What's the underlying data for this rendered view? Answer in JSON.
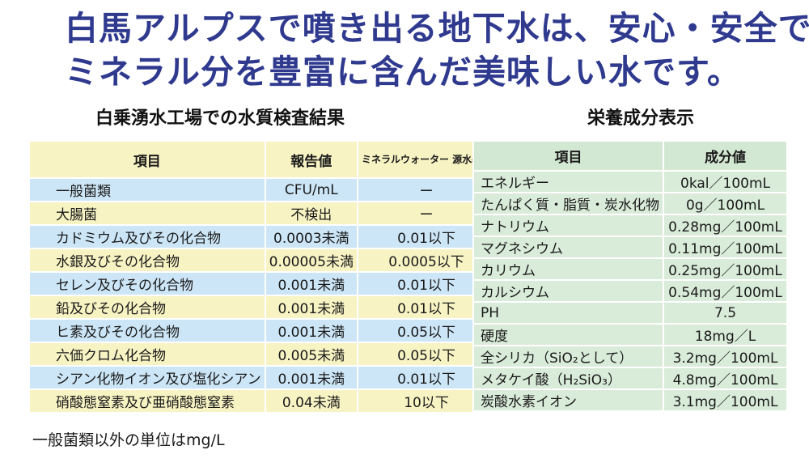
{
  "headline": {
    "line1": "白馬アルプスで噴き出る地下水は、安心・安全で",
    "line2": "ミネラル分を豊富に含んだ美味しい水です。"
  },
  "water_quality": {
    "title": "白乗湧水工場での水質検査結果",
    "headers": [
      "項目",
      "報告値",
      "ミネラルウォーター 源水基準"
    ],
    "rows": [
      [
        "一般菌類",
        "CFU/mL",
        "ー"
      ],
      [
        "大腸菌",
        "不検出",
        "ー"
      ],
      [
        "カドミウム及びその化合物",
        "0.0003未満",
        "0.01以下"
      ],
      [
        "水銀及びその化合物",
        "0.00005未満",
        "0.0005以下"
      ],
      [
        "セレン及びその化合物",
        "0.001未満",
        "0.01以下"
      ],
      [
        "鉛及びその化合物",
        "0.001未満",
        "0.01以下"
      ],
      [
        "ヒ素及びその化合物",
        "0.001未満",
        "0.05以下"
      ],
      [
        "六価クロム化合物",
        "0.005未満",
        "0.05以下"
      ],
      [
        "シアン化物イオン及び塩化シアン",
        "0.001未満",
        "0.01以下"
      ],
      [
        "硝酸態窒素及び亜硝酸態窒素",
        "0.04未満",
        "10以下"
      ]
    ],
    "footnote": "一般菌類以外の単位はmg/L"
  },
  "nutrition": {
    "title": "栄養成分表示",
    "headers": [
      "項目",
      "成分値"
    ],
    "rows": [
      [
        "エネルギー",
        "0kal／100mL"
      ],
      [
        "たんぱく質・脂質・炭水化物",
        "0g／100mL"
      ],
      [
        "ナトリウム",
        "0.28mg／100mL"
      ],
      [
        "マグネシウム",
        "0.11mg／100mL"
      ],
      [
        "カリウム",
        "0.25mg／100mL"
      ],
      [
        "カルシウム",
        "0.54mg／100mL"
      ],
      [
        "PH",
        "7.5"
      ],
      [
        "硬度",
        "18mg／L"
      ],
      [
        "全シリカ（SiO₂として）",
        "3.2mg／100mL"
      ],
      [
        "メタケイ酸（H₂SiO₃）",
        "4.8mg／100mL"
      ],
      [
        "炭酸水素イオン",
        "3.1mg／100mL"
      ]
    ]
  },
  "colors": {
    "headline": "#2f3a8f",
    "water_blue": "#cce6f7",
    "water_yellow": "#f7f3c3",
    "nutrition_green": "#d9ebd9"
  }
}
